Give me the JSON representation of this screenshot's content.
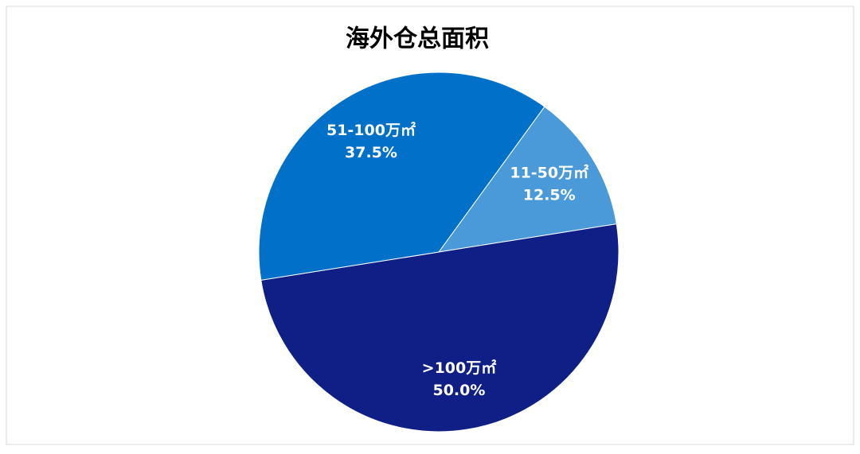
{
  "chart_data": {
    "type": "pie",
    "title": "海外仓总面积",
    "categories": [
      "11-50万㎡",
      ">100万㎡",
      "51-100万㎡"
    ],
    "values": [
      12.5,
      50.0,
      37.5
    ],
    "value_labels": [
      "12.5%",
      "50.0%",
      "37.5%"
    ],
    "colors": [
      "#4a9ad9",
      "#0f1f86",
      "#0070c8"
    ]
  }
}
